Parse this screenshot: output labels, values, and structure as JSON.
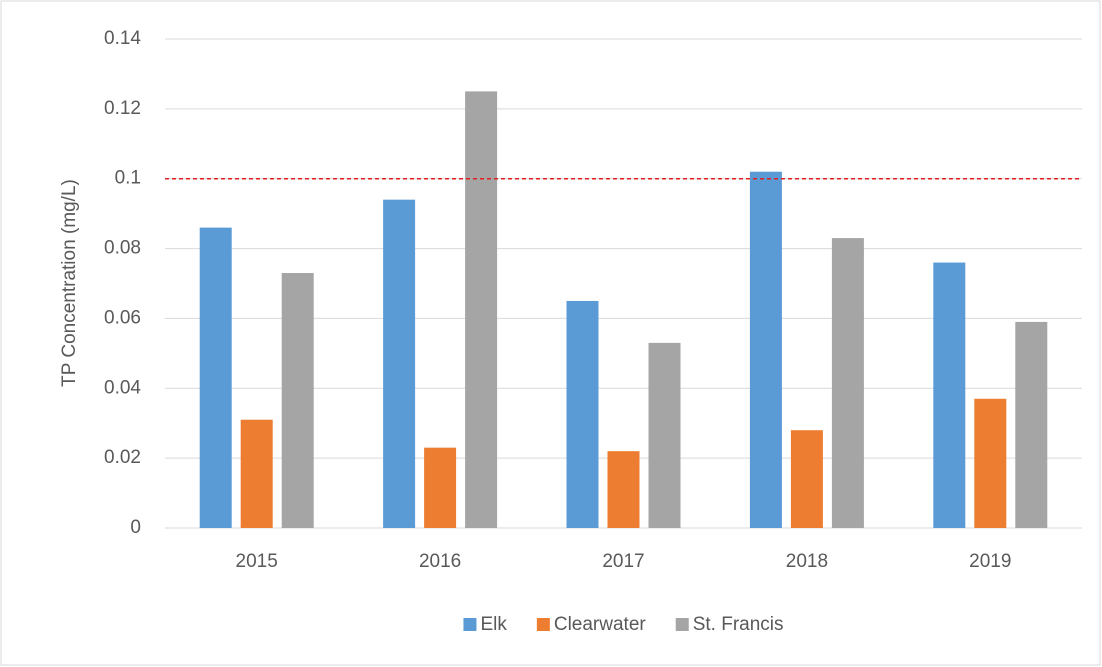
{
  "chart_data": {
    "type": "bar",
    "y_label": "TP Concentration (mg/L)",
    "categories": [
      "2015",
      "2016",
      "2017",
      "2018",
      "2019"
    ],
    "series": [
      {
        "name": "Elk",
        "color": "#5b9bd5",
        "values": [
          0.086,
          0.094,
          0.065,
          0.102,
          0.076
        ]
      },
      {
        "name": "Clearwater",
        "color": "#ed7d31",
        "values": [
          0.031,
          0.023,
          0.022,
          0.028,
          0.037
        ]
      },
      {
        "name": "St. Francis",
        "color": "#a5a5a5",
        "values": [
          0.073,
          0.125,
          0.053,
          0.083,
          0.059
        ]
      }
    ],
    "ylim": [
      0,
      0.14
    ],
    "yticks": [
      0,
      0.02,
      0.04,
      0.06,
      0.08,
      0.1,
      0.12,
      0.14
    ],
    "grid": true,
    "reference_line": {
      "value": 0.1,
      "color": "#e02020"
    },
    "legend": "bottom"
  }
}
